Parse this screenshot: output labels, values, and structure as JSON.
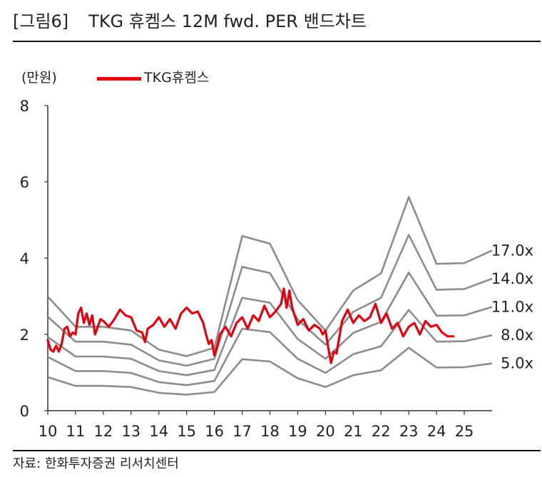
{
  "header": {
    "figure_label": "[그림6]",
    "title": "TKG 휴켐스 12M fwd. PER 밴드차트"
  },
  "footer": {
    "source": "자료: 한화투자증권 리서치센터"
  },
  "colors": {
    "price": "#e3000f",
    "band": "#8c8c8c",
    "axis": "#333333",
    "text": "#222222"
  },
  "chart_data": {
    "type": "line",
    "title": "TKG 휴켐스 12M fwd. PER 밴드차트",
    "ylabel": "(만원)",
    "xlabel": "",
    "ylim": [
      0,
      8
    ],
    "yticks": [
      "0",
      "2",
      "4",
      "6",
      "8"
    ],
    "xlim": [
      10,
      26
    ],
    "xticks": [
      "10",
      "11",
      "12",
      "13",
      "14",
      "15",
      "16",
      "17",
      "18",
      "19",
      "20",
      "21",
      "22",
      "23",
      "24",
      "25"
    ],
    "legend": [
      "TKG휴켐스"
    ],
    "legend_position": "top-left",
    "bands": [
      {
        "name": "17.0x",
        "x": [
          10,
          11,
          12,
          13,
          14,
          15,
          16,
          17,
          18,
          19,
          20,
          21,
          22,
          23,
          24,
          25,
          26
        ],
        "values": [
          2.99,
          2.2,
          2.2,
          2.1,
          1.6,
          1.43,
          1.65,
          4.58,
          4.38,
          2.9,
          2.1,
          3.15,
          3.6,
          5.6,
          3.85,
          3.87,
          4.2
        ]
      },
      {
        "name": "14.0x",
        "x": [
          10,
          11,
          12,
          13,
          14,
          15,
          16,
          17,
          18,
          19,
          20,
          21,
          22,
          23,
          24,
          25,
          26
        ],
        "values": [
          2.46,
          1.81,
          1.81,
          1.73,
          1.32,
          1.18,
          1.36,
          3.77,
          3.61,
          2.39,
          1.73,
          2.59,
          2.96,
          4.61,
          3.17,
          3.19,
          3.46
        ]
      },
      {
        "name": "11.0x",
        "x": [
          10,
          11,
          12,
          13,
          14,
          15,
          16,
          17,
          18,
          19,
          20,
          21,
          22,
          23,
          24,
          25,
          26
        ],
        "values": [
          1.93,
          1.42,
          1.42,
          1.36,
          1.04,
          0.93,
          1.07,
          2.96,
          2.83,
          1.88,
          1.36,
          2.04,
          2.33,
          3.62,
          2.49,
          2.5,
          2.72
        ]
      },
      {
        "name": "8.0x",
        "x": [
          10,
          11,
          12,
          13,
          14,
          15,
          16,
          17,
          18,
          19,
          20,
          21,
          22,
          23,
          24,
          25,
          26
        ],
        "values": [
          1.41,
          1.04,
          1.04,
          0.99,
          0.75,
          0.67,
          0.78,
          2.15,
          2.06,
          1.36,
          0.99,
          1.48,
          1.69,
          2.64,
          1.81,
          1.82,
          1.98
        ]
      },
      {
        "name": "5.0x",
        "x": [
          10,
          11,
          12,
          13,
          14,
          15,
          16,
          17,
          18,
          19,
          20,
          21,
          22,
          23,
          24,
          25,
          26
        ],
        "values": [
          0.88,
          0.65,
          0.65,
          0.62,
          0.47,
          0.42,
          0.49,
          1.35,
          1.29,
          0.85,
          0.62,
          0.93,
          1.06,
          1.65,
          1.13,
          1.14,
          1.24
        ]
      }
    ],
    "series": [
      {
        "name": "TKG휴켐스",
        "x": [
          10.0,
          10.1,
          10.2,
          10.3,
          10.4,
          10.5,
          10.6,
          10.7,
          10.8,
          10.9,
          11.0,
          11.1,
          11.2,
          11.3,
          11.4,
          11.5,
          11.6,
          11.7,
          11.8,
          11.9,
          12.0,
          12.2,
          12.4,
          12.6,
          12.8,
          13.0,
          13.2,
          13.4,
          13.5,
          13.6,
          13.8,
          14.0,
          14.2,
          14.4,
          14.6,
          14.8,
          15.0,
          15.2,
          15.4,
          15.6,
          15.7,
          15.8,
          15.9,
          16.0,
          16.1,
          16.2,
          16.4,
          16.6,
          16.8,
          17.0,
          17.2,
          17.4,
          17.6,
          17.8,
          18.0,
          18.2,
          18.4,
          18.5,
          18.6,
          18.7,
          18.8,
          19.0,
          19.2,
          19.4,
          19.6,
          19.8,
          19.9,
          20.0,
          20.1,
          20.2,
          20.3,
          20.4,
          20.6,
          20.8,
          21.0,
          21.2,
          21.4,
          21.6,
          21.8,
          22.0,
          22.2,
          22.4,
          22.6,
          22.8,
          23.0,
          23.2,
          23.4,
          23.6,
          23.8,
          24.0,
          24.2,
          24.4,
          24.6
        ],
        "values": [
          1.85,
          1.6,
          1.55,
          1.7,
          1.55,
          1.75,
          2.15,
          2.2,
          1.95,
          2.05,
          2.0,
          2.55,
          2.7,
          2.3,
          2.55,
          2.25,
          2.5,
          2.0,
          2.2,
          2.4,
          2.35,
          2.2,
          2.4,
          2.65,
          2.5,
          2.45,
          2.1,
          2.05,
          1.8,
          2.15,
          2.25,
          2.45,
          2.2,
          2.4,
          2.15,
          2.55,
          2.7,
          2.55,
          2.6,
          2.3,
          2.0,
          1.75,
          1.85,
          1.45,
          1.7,
          2.0,
          2.2,
          1.95,
          2.3,
          2.45,
          2.15,
          2.5,
          2.35,
          2.75,
          2.45,
          2.6,
          2.8,
          3.2,
          2.7,
          3.15,
          2.7,
          2.25,
          2.4,
          2.1,
          2.25,
          2.15,
          2.0,
          2.1,
          1.65,
          1.25,
          1.55,
          1.5,
          2.35,
          2.65,
          2.3,
          2.5,
          2.35,
          2.45,
          2.8,
          2.3,
          2.55,
          2.15,
          2.3,
          1.95,
          2.2,
          2.3,
          2.0,
          2.35,
          2.2,
          2.25,
          2.05,
          1.95,
          1.95
        ]
      }
    ]
  }
}
